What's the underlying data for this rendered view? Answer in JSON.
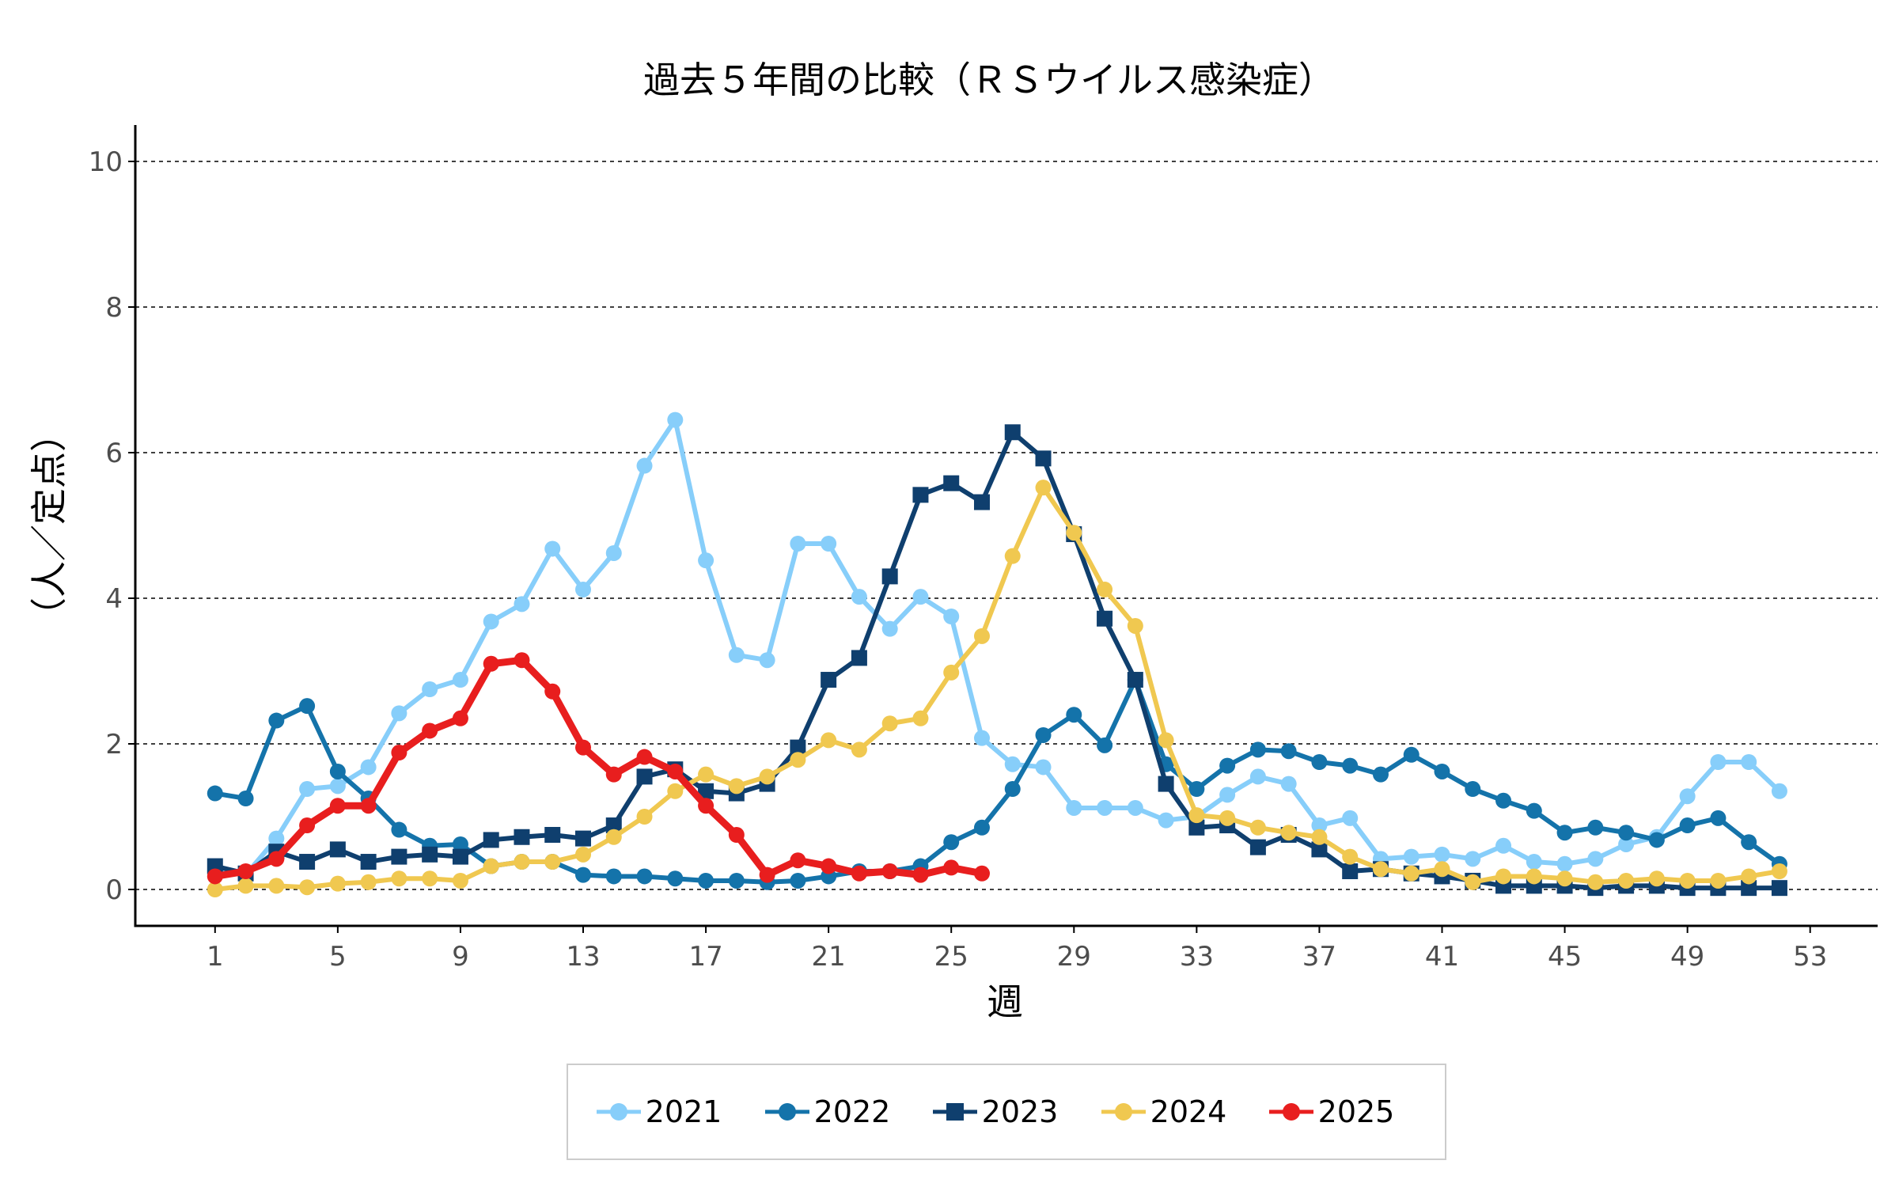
{
  "chart_data": {
    "type": "line",
    "title": "過去５年間の比較（ＲＳウイルス感染症）",
    "xlabel": "週",
    "ylabel": "（人／定点）",
    "xlim": [
      -1.6,
      55.2
    ],
    "ylim": [
      -0.5,
      10.5
    ],
    "x_ticks": [
      1,
      5,
      9,
      13,
      17,
      21,
      25,
      29,
      33,
      37,
      41,
      45,
      49,
      53
    ],
    "y_ticks": [
      0,
      2,
      4,
      6,
      8,
      10
    ],
    "grid": "horizontal dashed at y-ticks",
    "legend_position": "bottom",
    "series": [
      {
        "name": "2021",
        "color": "#87cefa",
        "marker": "circle",
        "x_start": 1,
        "values": [
          0.25,
          0.2,
          0.7,
          1.38,
          1.42,
          1.68,
          2.42,
          2.75,
          2.88,
          3.68,
          3.92,
          4.68,
          4.12,
          4.62,
          5.82,
          6.45,
          4.52,
          3.22,
          3.15,
          4.75,
          4.75,
          4.02,
          3.58,
          4.02,
          3.75,
          2.08,
          1.72,
          1.68,
          1.12,
          1.12,
          1.12,
          0.95,
          1.0,
          1.3,
          1.55,
          1.45,
          0.88,
          0.98,
          0.42,
          0.45,
          0.48,
          0.42,
          0.6,
          0.38,
          0.35,
          0.42,
          0.62,
          0.72,
          1.28,
          1.75,
          1.75,
          1.35
        ]
      },
      {
        "name": "2022",
        "color": "#1473aa",
        "marker": "circle",
        "x_start": 1,
        "values": [
          1.32,
          1.25,
          2.32,
          2.52,
          1.62,
          1.25,
          0.82,
          0.6,
          0.62,
          0.32,
          0.38,
          0.38,
          0.2,
          0.18,
          0.18,
          0.15,
          0.12,
          0.12,
          0.1,
          0.12,
          0.18,
          0.25,
          0.25,
          0.32,
          0.65,
          0.85,
          1.38,
          2.12,
          2.4,
          1.98,
          2.88,
          1.72,
          1.38,
          1.7,
          1.92,
          1.9,
          1.75,
          1.7,
          1.58,
          1.85,
          1.62,
          1.38,
          1.22,
          1.08,
          0.78,
          0.85,
          0.78,
          0.68,
          0.88,
          0.98,
          0.65,
          0.35
        ]
      },
      {
        "name": "2023",
        "color": "#0f3f6e",
        "marker": "square",
        "x_start": 1,
        "values": [
          0.32,
          0.22,
          0.52,
          0.38,
          0.55,
          0.38,
          0.45,
          0.48,
          0.45,
          0.68,
          0.72,
          0.75,
          0.7,
          0.88,
          1.55,
          1.65,
          1.35,
          1.32,
          1.45,
          1.95,
          2.88,
          3.18,
          4.3,
          5.42,
          5.58,
          5.32,
          6.28,
          5.92,
          4.88,
          3.72,
          2.88,
          1.45,
          0.85,
          0.88,
          0.58,
          0.75,
          0.55,
          0.25,
          0.28,
          0.22,
          0.18,
          0.12,
          0.05,
          0.05,
          0.05,
          0.02,
          0.05,
          0.05,
          0.02,
          0.02,
          0.02,
          0.02
        ]
      },
      {
        "name": "2024",
        "color": "#f0c850",
        "marker": "circle",
        "x_start": 1,
        "values": [
          0.0,
          0.05,
          0.05,
          0.03,
          0.08,
          0.1,
          0.15,
          0.15,
          0.12,
          0.32,
          0.38,
          0.38,
          0.48,
          0.72,
          1.0,
          1.35,
          1.58,
          1.42,
          1.55,
          1.78,
          2.05,
          1.92,
          2.28,
          2.35,
          2.98,
          3.48,
          4.58,
          5.52,
          4.9,
          4.12,
          3.62,
          2.05,
          1.02,
          0.98,
          0.85,
          0.78,
          0.72,
          0.45,
          0.28,
          0.22,
          0.28,
          0.1,
          0.18,
          0.18,
          0.15,
          0.1,
          0.12,
          0.15,
          0.12,
          0.12,
          0.18,
          0.25
        ]
      },
      {
        "name": "2025",
        "color": "#e81e1e",
        "marker": "circle",
        "x_start": 1,
        "values": [
          0.18,
          0.25,
          0.42,
          0.88,
          1.15,
          1.15,
          1.88,
          2.18,
          2.35,
          3.1,
          3.15,
          2.72,
          1.95,
          1.58,
          1.82,
          1.62,
          1.15,
          0.75,
          0.2,
          0.4,
          0.32,
          0.22,
          0.25,
          0.2,
          0.3,
          0.22
        ]
      }
    ]
  }
}
